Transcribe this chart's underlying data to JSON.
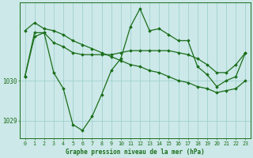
{
  "background_color": "#cce8e8",
  "plot_bg_color": "#cce8e8",
  "grid_color": "#99cccc",
  "line_color": "#1a6e1a",
  "marker_color": "#1a6e1a",
  "xlabel": "Graphe pression niveau de la mer (hPa)",
  "x_ticks": [
    0,
    1,
    2,
    3,
    4,
    5,
    6,
    7,
    8,
    9,
    10,
    11,
    12,
    13,
    14,
    15,
    16,
    17,
    18,
    19,
    20,
    21,
    22,
    23
  ],
  "ylim": [
    1028.55,
    1031.95
  ],
  "yticks": [
    1029,
    1030
  ],
  "series_jagged": [
    1030.1,
    1031.1,
    1031.2,
    1030.2,
    1029.8,
    1028.9,
    1028.75,
    1029.1,
    1029.65,
    1030.25,
    1030.55,
    1031.35,
    1031.8,
    1031.25,
    1031.3,
    1031.15,
    1031.0,
    1031.0,
    1030.35,
    1030.15,
    1029.85,
    1030.0,
    1030.1,
    1030.7
  ],
  "series_trend": [
    1031.25,
    1031.45,
    1031.3,
    1031.25,
    1031.15,
    1031.0,
    1030.9,
    1030.8,
    1030.7,
    1030.6,
    1030.5,
    1030.4,
    1030.35,
    1030.25,
    1030.2,
    1030.1,
    1030.0,
    1029.95,
    1029.85,
    1029.8,
    1029.7,
    1029.75,
    1029.8,
    1030.0
  ],
  "series_flat": [
    1030.1,
    1031.2,
    1031.2,
    1030.95,
    1030.85,
    1030.7,
    1030.65,
    1030.65,
    1030.65,
    1030.65,
    1030.7,
    1030.75,
    1030.75,
    1030.75,
    1030.75,
    1030.75,
    1030.7,
    1030.65,
    1030.55,
    1030.4,
    1030.2,
    1030.2,
    1030.4,
    1030.7
  ]
}
